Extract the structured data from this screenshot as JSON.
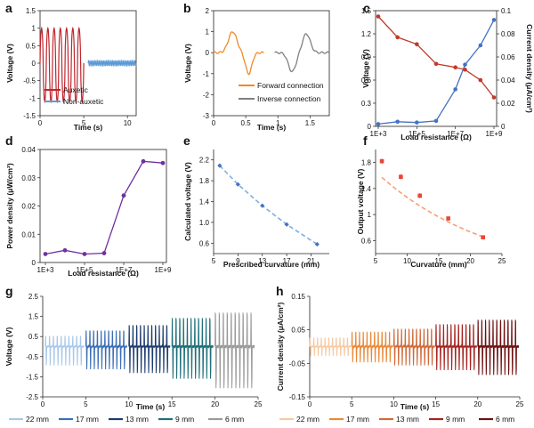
{
  "chart_data": [
    {
      "panel": "a",
      "type": "line",
      "xlabel": "Time (s)",
      "ylabel": "Voltage (V)",
      "xlim": [
        0,
        11
      ],
      "ylim": [
        -1.5,
        1.5
      ],
      "xticks": [
        "0",
        "5",
        "10"
      ],
      "yticks": [
        "-1.5",
        "-1",
        "-0.5",
        "0",
        "0.5",
        "1",
        "1.5"
      ],
      "series": [
        {
          "name": "Auxetic",
          "color": "#c0262e",
          "x_range": [
            0,
            5
          ],
          "peak_count": 7,
          "peak_value": 1.0,
          "trough_value": -1.1
        },
        {
          "name": "Non-auxetic",
          "color": "#5b9bd5",
          "x_range": [
            5.5,
            11
          ],
          "peak_value": 0.07,
          "trough_value": -0.07
        }
      ],
      "legend": "bottom-left"
    },
    {
      "panel": "b",
      "type": "line",
      "xlabel": "Time (s)",
      "ylabel": "Voltage (V)",
      "xlim": [
        0,
        1.8
      ],
      "ylim": [
        -3,
        2
      ],
      "xticks": [
        "0",
        "0.5",
        "1",
        "1.5"
      ],
      "yticks": [
        "-3",
        "-2",
        "-1",
        "0",
        "1",
        "2"
      ],
      "series": [
        {
          "name": "Forward connection",
          "color": "#f08a24",
          "x_range": [
            0,
            0.78
          ],
          "peak_value": 1.0,
          "trough_value": -1.0
        },
        {
          "name": "Inverse connection",
          "color": "#808080",
          "x_range": [
            0.95,
            1.8
          ],
          "peak_value": 0.9,
          "trough_value": -0.9
        }
      ],
      "legend": "bottom-right"
    },
    {
      "panel": "c",
      "type": "line",
      "xlabel": "Load resistance (Ω)",
      "ylabel": "Voltage (V)",
      "ylabel_right": "Current density (μA/cm²)",
      "x_log_exponents": [
        3,
        4,
        5,
        6,
        7,
        7.5,
        8.3,
        9
      ],
      "xticks": [
        "1E+3",
        "1E+5",
        "1E+7",
        "1E+9"
      ],
      "ylim": [
        0,
        1.5
      ],
      "yticks": [
        "0",
        "0.3",
        "0.6",
        "0.9",
        "1.2",
        "1.5"
      ],
      "ylim_right": [
        0,
        0.1
      ],
      "yticks_right": [
        "0",
        "0.02",
        "0.04",
        "0.06",
        "0.08",
        "0.1"
      ],
      "series": [
        {
          "name": "Voltage",
          "axis": "left",
          "color": "#4472c4",
          "values": [
            0.03,
            0.06,
            0.05,
            0.07,
            0.48,
            0.8,
            1.05,
            1.38
          ]
        },
        {
          "name": "Current density",
          "axis": "right",
          "color": "#c0392b",
          "values": [
            0.095,
            0.077,
            0.071,
            0.054,
            0.051,
            0.049,
            0.04,
            0.025
          ]
        }
      ]
    },
    {
      "panel": "d",
      "type": "line",
      "xlabel": "Load resistance (Ω)",
      "ylabel": "Power density (μW/cm²)",
      "x_log_exponents": [
        3,
        4,
        5,
        6,
        7,
        8,
        9
      ],
      "xticks": [
        "1E+3",
        "1E+5",
        "1E+7",
        "1E+9"
      ],
      "ylim": [
        0,
        0.04
      ],
      "yticks": [
        "0",
        "0.01",
        "0.02",
        "0.03",
        "0.04"
      ],
      "series": [
        {
          "name": "Power density",
          "color": "#7030a0",
          "values": [
            0.003,
            0.0043,
            0.003,
            0.0033,
            0.0237,
            0.0358,
            0.0352
          ]
        }
      ]
    },
    {
      "panel": "e",
      "type": "scatter",
      "xlabel": "Prescribed curvature (mm)",
      "ylabel": "Calculated voltage (V)",
      "xlim": [
        5,
        24
      ],
      "xticks": [
        "5",
        "9",
        "13",
        "17",
        "21"
      ],
      "ylim": [
        0.4,
        2.4
      ],
      "yticks": [
        "0.6",
        "1.0",
        "1.4",
        "1.8",
        "2.2"
      ],
      "series": [
        {
          "name": "Calculated voltage",
          "color": "#4472c4",
          "x": [
            6,
            9,
            13,
            17,
            22
          ],
          "y": [
            2.09,
            1.73,
            1.32,
            0.96,
            0.58
          ]
        }
      ],
      "fit_line": {
        "color": "#7fb0db",
        "style": "dashed"
      }
    },
    {
      "panel": "f",
      "type": "scatter",
      "xlabel": "Curvature (mm)",
      "ylabel": "Output voltage (V)",
      "xlim": [
        5,
        25
      ],
      "xticks": [
        "5",
        "10",
        "15",
        "20",
        "25"
      ],
      "ylim": [
        0.4,
        2.0
      ],
      "yticks": [
        "0.6",
        "1",
        "1.4",
        "1.8"
      ],
      "series": [
        {
          "name": "Output voltage",
          "color": "#e8463a",
          "x": [
            6,
            9,
            12,
            16.5,
            22
          ],
          "y": [
            1.82,
            1.58,
            1.29,
            0.94,
            0.65
          ],
          "error": [
            0.04,
            0.04,
            0.04,
            0.03,
            0.03
          ]
        }
      ],
      "fit_line": {
        "color": "#f3a27a",
        "style": "dashed"
      }
    },
    {
      "panel": "g",
      "type": "line",
      "xlabel": "Time (s)",
      "ylabel": "Voltage (V)",
      "xlim": [
        0,
        25
      ],
      "xticks": [
        "0",
        "5",
        "10",
        "15",
        "20",
        "25"
      ],
      "ylim": [
        -2.5,
        2.5
      ],
      "yticks": [
        "-2.5",
        "-1.5",
        "-0.5",
        "0.5",
        "1.5",
        "2.5"
      ],
      "series": [
        {
          "name": "22 mm",
          "color": "#a8c8ea",
          "x_range": [
            0.3,
            4.8
          ],
          "peak_value": 0.6,
          "trough_value": -1.0
        },
        {
          "name": "17 mm",
          "color": "#3d6fb5",
          "x_range": [
            5,
            9.8
          ],
          "peak_value": 0.9,
          "trough_value": -1.2
        },
        {
          "name": "13 mm",
          "color": "#1e3b6e",
          "x_range": [
            10,
            14.8
          ],
          "peak_value": 1.2,
          "trough_value": -1.4
        },
        {
          "name": "9 mm",
          "color": "#1f6f7a",
          "x_range": [
            15,
            19.8
          ],
          "peak_value": 1.6,
          "trough_value": -1.7
        },
        {
          "name": "6 mm",
          "color": "#9a9a9a",
          "x_range": [
            20,
            24.6
          ],
          "peak_value": 1.9,
          "trough_value": -2.2
        }
      ]
    },
    {
      "panel": "h",
      "type": "line",
      "xlabel": "Time (s)",
      "ylabel": "Current density (μA/cm²)",
      "xlim": [
        0,
        25
      ],
      "xticks": [
        "0",
        "5",
        "10",
        "15",
        "20",
        "25"
      ],
      "ylim": [
        -0.15,
        0.15
      ],
      "yticks": [
        "-0.15",
        "-0.05",
        "0.05",
        "0.15"
      ],
      "series": [
        {
          "name": "22 mm",
          "color": "#f6c9a3",
          "x_range": [
            0,
            4.9
          ],
          "peak_value": 0.03,
          "trough_value": -0.03
        },
        {
          "name": "17 mm",
          "color": "#e88a3a",
          "x_range": [
            5,
            9.9
          ],
          "peak_value": 0.05,
          "trough_value": -0.05
        },
        {
          "name": "13 mm",
          "color": "#cf6a3a",
          "x_range": [
            10,
            14.9
          ],
          "peak_value": 0.06,
          "trough_value": -0.06
        },
        {
          "name": "9 mm",
          "color": "#a4231f",
          "x_range": [
            15,
            19.9
          ],
          "peak_value": 0.075,
          "trough_value": -0.075
        },
        {
          "name": "6 mm",
          "color": "#6e1010",
          "x_range": [
            20,
            24.9
          ],
          "peak_value": 0.09,
          "trough_value": -0.09
        }
      ]
    }
  ]
}
